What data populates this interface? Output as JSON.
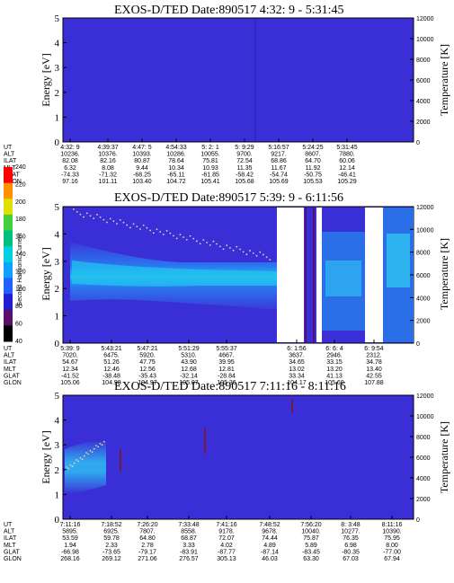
{
  "chart_data": [
    {
      "type": "heatmap",
      "title": "EXOS-D/TED   Date:890517   4:32: 9 - 5:31:45",
      "ylabel": "Energy [eV]",
      "y2label": "Temperature [K]",
      "ylim": [
        0,
        5
      ],
      "y2lim": [
        0,
        12000
      ],
      "yticks": [
        "0",
        "1",
        "2",
        "3",
        "4",
        "5"
      ],
      "y2ticks": [
        "0",
        "2000",
        "4000",
        "6000",
        "8000",
        "10000",
        "12000"
      ],
      "row_labels": [
        "UT",
        "ALT",
        "ILAT",
        "MLT",
        "GLAT",
        "GLON"
      ],
      "columns": [
        [
          "4:32: 9",
          "10236.",
          "82.08",
          "6.32",
          "-74.33",
          "97.16"
        ],
        [
          "4:39:37",
          "10376.",
          "82.16",
          "8.08",
          "-71.32",
          "101.11"
        ],
        [
          "4:47: 5",
          "10393.",
          "80.87",
          "9.44",
          "-68.25",
          "103.40"
        ],
        [
          "4:54:33",
          "10286.",
          "78.64",
          "10.34",
          "-65.11",
          "104.72"
        ],
        [
          "5: 2: 1",
          "10055.",
          "75.81",
          "10.93",
          "-61.85",
          "105.41"
        ],
        [
          "5: 9:29",
          "9700.",
          "72.54",
          "11.35",
          "-58.42",
          "105.68"
        ],
        [
          "5:16:57",
          "9217.",
          "68.86",
          "11.67",
          "-54.74",
          "105.69"
        ],
        [
          "5:24:25",
          "8607.",
          "64.70",
          "11.92",
          "-50.75",
          "105.53"
        ],
        [
          "5:31:45",
          "7880.",
          "60.06",
          "12.14",
          "-46.41",
          "105.29"
        ]
      ]
    },
    {
      "type": "heatmap",
      "title": "EXOS-D/TED   Date:890517   5:39: 9 - 6:11:56",
      "ylabel": "Energy [eV]",
      "y2label": "Temperature [K]",
      "ylim": [
        0,
        5
      ],
      "y2lim": [
        0,
        12000
      ],
      "yticks": [
        "0",
        "1",
        "2",
        "3",
        "4",
        "5"
      ],
      "y2ticks": [
        "0",
        "2000",
        "4000",
        "6000",
        "8000",
        "10000",
        "12000"
      ],
      "row_labels": [
        "UT",
        "ALT",
        "ILAT",
        "MLT",
        "GLAT",
        "GLON"
      ],
      "columns": [
        [
          "5:39: 9",
          "7020.",
          "54.67",
          "12.34",
          "-41.52",
          "105.06"
        ],
        [
          "5:43:21",
          "6475.",
          "51.26",
          "12.46",
          "-38.48",
          "104.98"
        ],
        [
          "5:47:21",
          "5920.",
          "47.75",
          "12.56",
          "-35.43",
          "104.97"
        ],
        [
          "5:51:29",
          "5310.",
          "43.90",
          "12.68",
          "-32.14",
          "105.07"
        ],
        [
          "5:55:37",
          "4667.",
          "39.95",
          "12.81",
          "-28.84",
          "105.36"
        ],
        [
          "6: 1:56",
          "3637.",
          "34.65",
          "13.02",
          "33.34",
          "104.17"
        ],
        [
          "6: 6: 4",
          "2946.",
          "33.15",
          "13.20",
          "41.13",
          "105.60"
        ],
        [
          "6: 9:54",
          "2312.",
          "34.78",
          "13.40",
          "42.55",
          "107.88"
        ]
      ],
      "colorbar": {
        "label": "Second Harmonic Current",
        "ticks": [
          "40",
          "60",
          "80",
          "100",
          "120",
          "140",
          "160",
          "180",
          "200",
          "220",
          "240"
        ],
        "colors": [
          "#000000",
          "#5a0f6a",
          "#2020d0",
          "#2060ff",
          "#10a0ff",
          "#00d0e0",
          "#00c080",
          "#40d040",
          "#e0e000",
          "#ff9000",
          "#ff0000"
        ]
      }
    },
    {
      "type": "heatmap",
      "title": "EXOS-D/TED   Date:890517   7:11:16 - 8:11:16",
      "ylabel": "Energy [eV]",
      "y2label": "Temperature [K]",
      "ylim": [
        0,
        5
      ],
      "y2lim": [
        0,
        12000
      ],
      "yticks": [
        "0",
        "1",
        "2",
        "3",
        "4",
        "5"
      ],
      "y2ticks": [
        "0",
        "2000",
        "4000",
        "6000",
        "8000",
        "10000",
        "12000"
      ],
      "row_labels": [
        "UT",
        "ALT",
        "ILAT",
        "MLT",
        "GLAT",
        "GLON"
      ],
      "columns": [
        [
          "7:11:16",
          "5895.",
          "53.59",
          "1.94",
          "-66.98",
          "268.16"
        ],
        [
          "7:18:52",
          "6925.",
          "59.78",
          "2.33",
          "-73.65",
          "269.12"
        ],
        [
          "7:26:20",
          "7807.",
          "64.80",
          "2.78",
          "-79.17",
          "271.06"
        ],
        [
          "7:33:48",
          "8558.",
          "68.87",
          "3.33",
          "-83.91",
          "276.57"
        ],
        [
          "7:41:16",
          "9178.",
          "72.07",
          "4.02",
          "-87.77",
          "305.13"
        ],
        [
          "7:48:52",
          "9678.",
          "74.44",
          "4.89",
          "-87.14",
          "46.03"
        ],
        [
          "7:56:20",
          "10040.",
          "75.87",
          "5.89",
          "-83.45",
          "63.30"
        ],
        [
          "8: 3:48",
          "10277.",
          "76.35",
          "6.98",
          "-80.35",
          "67.03"
        ],
        [
          "8:11:16",
          "10390.",
          "75.95",
          "8.00",
          "-77.00",
          "67.94"
        ]
      ]
    }
  ],
  "colors": {
    "background_field": "#3a2fd6",
    "band_dark": "#2b4ae0",
    "band_mid": "#1f7ef0",
    "band_light": "#22c0f2",
    "grain": "#e8d4b0"
  }
}
